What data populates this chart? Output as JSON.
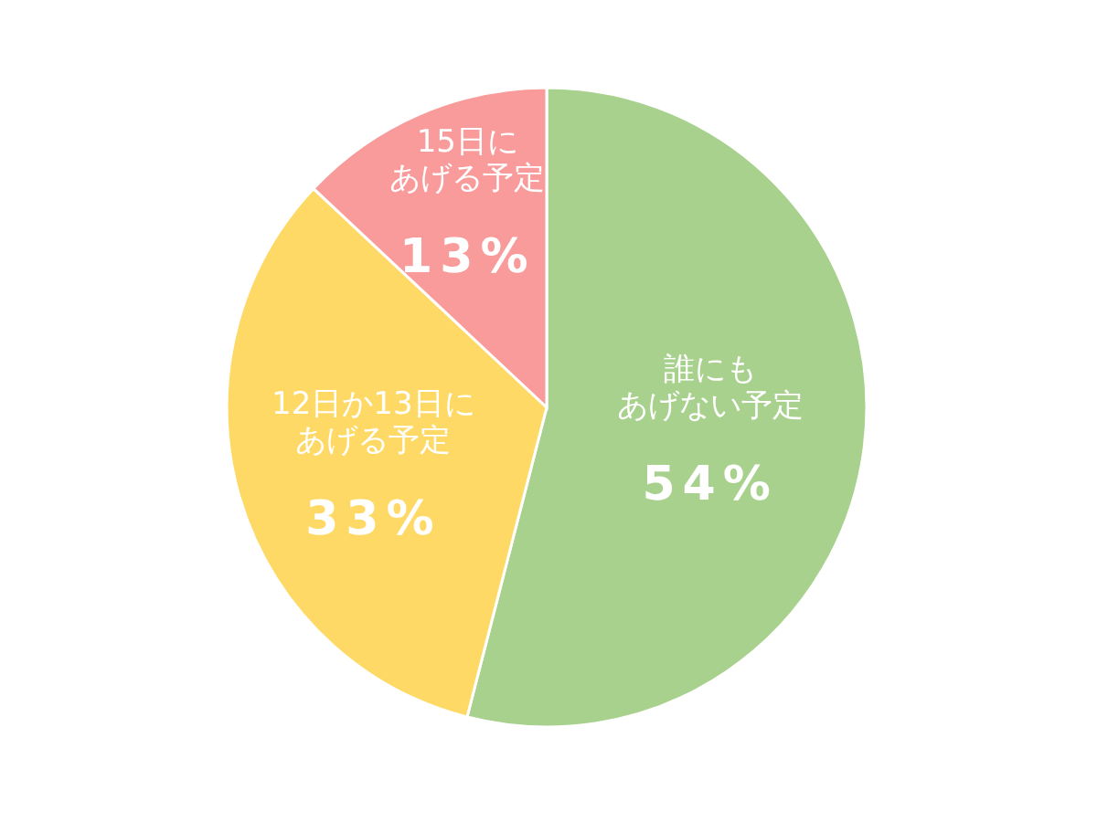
{
  "chart_data": {
    "type": "pie",
    "categories": [
      "誰にもあげない予定",
      "12日か13日にあげる予定",
      "15日にあげる予定"
    ],
    "values": [
      54,
      33,
      13
    ],
    "colors": [
      "#a9d18e",
      "#ffd966",
      "#f99b9b"
    ],
    "value_labels": [
      "54%",
      "33%",
      "13%"
    ]
  }
}
